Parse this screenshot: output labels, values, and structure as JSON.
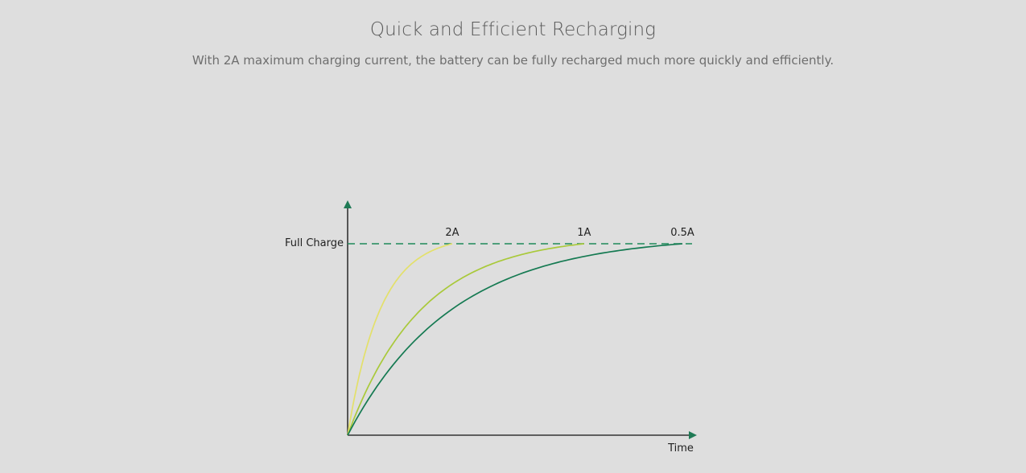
{
  "header": {
    "title": "Quick and Efficient Recharging",
    "subtitle": "With 2A maximum charging current, the battery can be fully recharged much more quickly and efficiently."
  },
  "chart_data": {
    "type": "line",
    "xlabel": "Time",
    "ylabel": "",
    "reference_line": {
      "label": "Full Charge",
      "style": "dashed",
      "color": "#1f8a5a"
    },
    "series": [
      {
        "name": "2A",
        "color": "#e3e06a",
        "time_to_full": 1
      },
      {
        "name": "1A",
        "color": "#a9c93a",
        "time_to_full": 2.26
      },
      {
        "name": "0.5A",
        "color": "#157a52",
        "time_to_full": 3.2
      }
    ],
    "axis_color": "#333333",
    "arrow_color": "#1f7a55",
    "grid": false
  }
}
